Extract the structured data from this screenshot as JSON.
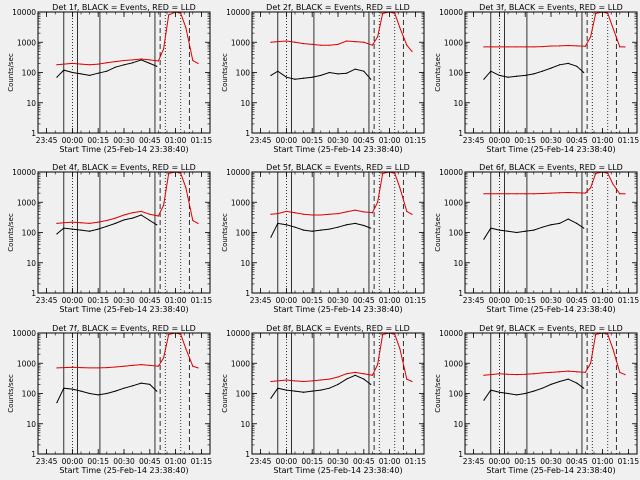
{
  "colors": {
    "background": "#f0f0f0",
    "axes": "#000000",
    "events_series": "#000000",
    "lld_series": "#dd0000"
  },
  "chart_data": [
    {
      "type": "line",
      "title": "Det 1f, BLACK = Events, RED = LLD",
      "xlabel": "Start Time (25-Feb-14 23:38:40)",
      "ylabel": "Counts/sec",
      "y_scale": "log",
      "ylim": [
        1,
        10000
      ],
      "x_ticks": [
        "23:45",
        "00:00",
        "00:15",
        "00:30",
        "00:45",
        "01:00",
        "01:15"
      ],
      "y_ticks": [
        "1",
        "10",
        "100",
        "1000",
        "10000"
      ],
      "grid": false,
      "series": [
        {
          "name": "Events",
          "color": "#000000",
          "x": [
            "23:51",
            "23:55",
            "00:00",
            "00:05",
            "00:10",
            "00:15",
            "00:20",
            "00:25",
            "00:30",
            "00:35",
            "00:40",
            "00:45",
            "00:49"
          ],
          "values": [
            70,
            120,
            100,
            90,
            80,
            95,
            110,
            150,
            180,
            210,
            260,
            200,
            160
          ]
        },
        {
          "name": "LLD",
          "color": "#dd0000",
          "x": [
            "23:51",
            "23:55",
            "00:00",
            "00:05",
            "00:10",
            "00:15",
            "00:20",
            "00:25",
            "00:30",
            "00:35",
            "00:40",
            "00:45",
            "00:50",
            "00:53",
            "00:56",
            "01:00",
            "01:03",
            "01:06",
            "01:10",
            "01:13"
          ],
          "values": [
            180,
            190,
            200,
            190,
            180,
            190,
            210,
            230,
            250,
            260,
            280,
            260,
            240,
            600,
            8000,
            10000,
            9000,
            3000,
            250,
            200
          ]
        }
      ]
    },
    {
      "type": "line",
      "title": "Det 2f, BLACK = Events, RED = LLD",
      "xlabel": "Start Time (25-Feb-14 23:38:40)",
      "ylabel": "Counts/sec",
      "y_scale": "log",
      "ylim": [
        1,
        10000
      ],
      "x_ticks": [
        "23:45",
        "00:00",
        "00:15",
        "00:30",
        "00:45",
        "01:00",
        "01:15"
      ],
      "y_ticks": [
        "1",
        "10",
        "100",
        "1000",
        "10000"
      ],
      "grid": false,
      "series": [
        {
          "name": "Events",
          "color": "#000000",
          "x": [
            "23:51",
            "23:55",
            "00:00",
            "00:05",
            "00:10",
            "00:15",
            "00:20",
            "00:25",
            "00:30",
            "00:35",
            "00:40",
            "00:45",
            "00:49"
          ],
          "values": [
            80,
            110,
            70,
            60,
            65,
            70,
            80,
            100,
            90,
            95,
            130,
            110,
            60
          ]
        },
        {
          "name": "LLD",
          "color": "#dd0000",
          "x": [
            "23:51",
            "23:55",
            "00:00",
            "00:05",
            "00:10",
            "00:15",
            "00:20",
            "00:25",
            "00:30",
            "00:35",
            "00:40",
            "00:45",
            "00:50",
            "00:53",
            "00:56",
            "01:00",
            "01:03",
            "01:06",
            "01:10",
            "01:13"
          ],
          "values": [
            1000,
            1050,
            1100,
            1000,
            900,
            850,
            800,
            800,
            850,
            1100,
            1050,
            1000,
            800,
            1500,
            9000,
            10000,
            9000,
            3000,
            800,
            500
          ]
        }
      ]
    },
    {
      "type": "line",
      "title": "Det 3f, BLACK = Events, RED = LLD",
      "xlabel": "Start Time (25-Feb-14 23:38:40)",
      "ylabel": "Counts/sec",
      "y_scale": "log",
      "ylim": [
        1,
        10000
      ],
      "x_ticks": [
        "23:45",
        "00:00",
        "00:15",
        "00:30",
        "00:45",
        "01:00",
        "01:15"
      ],
      "y_ticks": [
        "1",
        "10",
        "100",
        "1000",
        "10000"
      ],
      "grid": false,
      "series": [
        {
          "name": "Events",
          "color": "#000000",
          "x": [
            "23:51",
            "23:55",
            "00:00",
            "00:05",
            "00:10",
            "00:15",
            "00:20",
            "00:25",
            "00:30",
            "00:35",
            "00:40",
            "00:45",
            "00:49"
          ],
          "values": [
            60,
            110,
            80,
            70,
            75,
            80,
            90,
            110,
            140,
            180,
            200,
            160,
            100
          ]
        },
        {
          "name": "LLD",
          "color": "#dd0000",
          "x": [
            "23:51",
            "23:55",
            "00:00",
            "00:05",
            "00:10",
            "00:15",
            "00:20",
            "00:25",
            "00:30",
            "00:35",
            "00:40",
            "00:45",
            "00:50",
            "00:53",
            "00:56",
            "01:00",
            "01:03",
            "01:06",
            "01:10",
            "01:13"
          ],
          "values": [
            700,
            700,
            700,
            700,
            700,
            700,
            700,
            720,
            750,
            760,
            780,
            760,
            740,
            1500,
            9000,
            10000,
            9000,
            3000,
            700,
            700
          ]
        }
      ]
    },
    {
      "type": "line",
      "title": "Det 4f, BLACK = Events, RED = LLD",
      "xlabel": "Start Time (25-Feb-14 23:38:40)",
      "ylabel": "Counts/sec",
      "y_scale": "log",
      "ylim": [
        1,
        10000
      ],
      "x_ticks": [
        "23:45",
        "00:00",
        "00:15",
        "00:30",
        "00:45",
        "01:00",
        "01:15"
      ],
      "y_ticks": [
        "1",
        "10",
        "100",
        "1000",
        "10000"
      ],
      "grid": false,
      "series": [
        {
          "name": "Events",
          "color": "#000000",
          "x": [
            "23:51",
            "23:55",
            "00:00",
            "00:05",
            "00:10",
            "00:15",
            "00:20",
            "00:25",
            "00:30",
            "00:35",
            "00:40",
            "00:45",
            "00:49"
          ],
          "values": [
            90,
            140,
            130,
            120,
            110,
            130,
            160,
            200,
            260,
            300,
            380,
            250,
            180
          ]
        },
        {
          "name": "LLD",
          "color": "#dd0000",
          "x": [
            "23:51",
            "23:55",
            "00:00",
            "00:05",
            "00:10",
            "00:15",
            "00:20",
            "00:25",
            "00:30",
            "00:35",
            "00:40",
            "00:45",
            "00:50",
            "00:53",
            "00:56",
            "01:00",
            "01:03",
            "01:06",
            "01:10",
            "01:13"
          ],
          "values": [
            200,
            210,
            220,
            210,
            200,
            220,
            250,
            300,
            380,
            450,
            500,
            400,
            350,
            800,
            9000,
            10000,
            9000,
            3000,
            250,
            200
          ]
        }
      ]
    },
    {
      "type": "line",
      "title": "Det 5f, BLACK = Events, RED = LLD",
      "xlabel": "Start Time (25-Feb-14 23:38:40)",
      "ylabel": "Counts/sec",
      "y_scale": "log",
      "ylim": [
        1,
        10000
      ],
      "x_ticks": [
        "23:45",
        "00:00",
        "00:15",
        "00:30",
        "00:45",
        "01:00",
        "01:15"
      ],
      "y_ticks": [
        "1",
        "10",
        "100",
        "1000",
        "10000"
      ],
      "grid": false,
      "series": [
        {
          "name": "Events",
          "color": "#000000",
          "x": [
            "23:51",
            "23:55",
            "00:00",
            "00:05",
            "00:10",
            "00:15",
            "00:20",
            "00:25",
            "00:30",
            "00:35",
            "00:40",
            "00:45",
            "00:49"
          ],
          "values": [
            70,
            200,
            180,
            150,
            120,
            110,
            120,
            130,
            150,
            180,
            200,
            170,
            140
          ]
        },
        {
          "name": "LLD",
          "color": "#dd0000",
          "x": [
            "23:51",
            "23:55",
            "00:00",
            "00:05",
            "00:10",
            "00:15",
            "00:20",
            "00:25",
            "00:30",
            "00:35",
            "00:40",
            "00:45",
            "00:50",
            "00:53",
            "00:56",
            "01:00",
            "01:03",
            "01:06",
            "01:10",
            "01:13"
          ],
          "values": [
            400,
            420,
            500,
            450,
            400,
            380,
            380,
            400,
            420,
            480,
            550,
            480,
            450,
            1000,
            9000,
            10000,
            9000,
            3000,
            500,
            400
          ]
        }
      ]
    },
    {
      "type": "line",
      "title": "Det 6f, BLACK = Events, RED = LLD",
      "xlabel": "Start Time (25-Feb-14 23:38:40)",
      "ylabel": "Counts/sec",
      "y_scale": "log",
      "ylim": [
        1,
        10000
      ],
      "x_ticks": [
        "23:45",
        "00:00",
        "00:15",
        "00:30",
        "00:45",
        "01:00",
        "01:15"
      ],
      "y_ticks": [
        "1",
        "10",
        "100",
        "1000",
        "10000"
      ],
      "grid": false,
      "series": [
        {
          "name": "Events",
          "color": "#000000",
          "x": [
            "23:51",
            "23:55",
            "00:00",
            "00:05",
            "00:10",
            "00:15",
            "00:20",
            "00:25",
            "00:30",
            "00:35",
            "00:40",
            "00:45",
            "00:49"
          ],
          "values": [
            60,
            140,
            120,
            110,
            100,
            110,
            120,
            150,
            180,
            200,
            280,
            200,
            140
          ]
        },
        {
          "name": "LLD",
          "color": "#dd0000",
          "x": [
            "23:51",
            "23:55",
            "00:00",
            "00:05",
            "00:10",
            "00:15",
            "00:20",
            "00:25",
            "00:30",
            "00:35",
            "00:40",
            "00:45",
            "00:50",
            "00:53",
            "00:56",
            "01:00",
            "01:03",
            "01:06",
            "01:10",
            "01:13"
          ],
          "values": [
            1900,
            1900,
            1900,
            1900,
            1900,
            1900,
            1900,
            1950,
            2000,
            2050,
            2100,
            2050,
            2000,
            3000,
            9000,
            10000,
            9000,
            4000,
            1900,
            1900
          ]
        }
      ]
    },
    {
      "type": "line",
      "title": "Det 7f, BLACK = Events, RED = LLD",
      "xlabel": "Start Time (25-Feb-14 23:38:40)",
      "ylabel": "Counts/sec",
      "y_scale": "log",
      "ylim": [
        1,
        10000
      ],
      "x_ticks": [
        "23:45",
        "00:00",
        "00:15",
        "00:30",
        "00:45",
        "01:00",
        "01:15"
      ],
      "y_ticks": [
        "1",
        "10",
        "100",
        "1000",
        "10000"
      ],
      "grid": false,
      "series": [
        {
          "name": "Events",
          "color": "#000000",
          "x": [
            "23:51",
            "23:55",
            "00:00",
            "00:05",
            "00:10",
            "00:15",
            "00:20",
            "00:25",
            "00:30",
            "00:35",
            "00:40",
            "00:45",
            "00:49"
          ],
          "values": [
            50,
            150,
            140,
            120,
            100,
            90,
            100,
            120,
            150,
            180,
            220,
            200,
            120
          ]
        },
        {
          "name": "LLD",
          "color": "#dd0000",
          "x": [
            "23:51",
            "23:55",
            "00:00",
            "00:05",
            "00:10",
            "00:15",
            "00:20",
            "00:25",
            "00:30",
            "00:35",
            "00:40",
            "00:45",
            "00:50",
            "00:53",
            "00:56",
            "01:00",
            "01:03",
            "01:06",
            "01:10",
            "01:13"
          ],
          "values": [
            700,
            720,
            740,
            720,
            700,
            700,
            720,
            750,
            800,
            850,
            900,
            850,
            800,
            1500,
            9000,
            10000,
            9000,
            3000,
            800,
            700
          ]
        }
      ]
    },
    {
      "type": "line",
      "title": "Det 8f, BLACK = Events, RED = LLD",
      "xlabel": "Start Time (25-Feb-14 23:38:40)",
      "ylabel": "Counts/sec",
      "y_scale": "log",
      "ylim": [
        1,
        10000
      ],
      "x_ticks": [
        "23:45",
        "00:00",
        "00:15",
        "00:30",
        "00:45",
        "01:00",
        "01:15"
      ],
      "y_ticks": [
        "1",
        "10",
        "100",
        "1000",
        "10000"
      ],
      "grid": false,
      "series": [
        {
          "name": "Events",
          "color": "#000000",
          "x": [
            "23:51",
            "23:55",
            "00:00",
            "00:05",
            "00:10",
            "00:15",
            "00:20",
            "00:25",
            "00:30",
            "00:35",
            "00:40",
            "00:45",
            "00:49"
          ],
          "values": [
            70,
            150,
            130,
            120,
            110,
            120,
            130,
            150,
            200,
            300,
            400,
            300,
            200
          ]
        },
        {
          "name": "LLD",
          "color": "#dd0000",
          "x": [
            "23:51",
            "23:55",
            "00:00",
            "00:05",
            "00:10",
            "00:15",
            "00:20",
            "00:25",
            "00:30",
            "00:35",
            "00:40",
            "00:45",
            "00:50",
            "00:53",
            "00:56",
            "01:00",
            "01:03",
            "01:06",
            "01:10",
            "01:13"
          ],
          "values": [
            250,
            260,
            280,
            260,
            250,
            260,
            280,
            300,
            350,
            450,
            500,
            450,
            400,
            900,
            9000,
            10000,
            9000,
            3000,
            300,
            250
          ]
        }
      ]
    },
    {
      "type": "line",
      "title": "Det 9f, BLACK = Events, RED = LLD",
      "xlabel": "Start Time (25-Feb-14 23:38:40)",
      "ylabel": "Counts/sec",
      "y_scale": "log",
      "ylim": [
        1,
        10000
      ],
      "x_ticks": [
        "23:45",
        "00:00",
        "00:15",
        "00:30",
        "00:45",
        "01:00",
        "01:15"
      ],
      "y_ticks": [
        "1",
        "10",
        "100",
        "1000",
        "10000"
      ],
      "grid": false,
      "series": [
        {
          "name": "Events",
          "color": "#000000",
          "x": [
            "23:51",
            "23:55",
            "00:00",
            "00:05",
            "00:10",
            "00:15",
            "00:20",
            "00:25",
            "00:30",
            "00:35",
            "00:40",
            "00:45",
            "00:49"
          ],
          "values": [
            60,
            130,
            110,
            100,
            90,
            100,
            120,
            150,
            200,
            250,
            300,
            220,
            150
          ]
        },
        {
          "name": "LLD",
          "color": "#dd0000",
          "x": [
            "23:51",
            "23:55",
            "00:00",
            "00:05",
            "00:10",
            "00:15",
            "00:20",
            "00:25",
            "00:30",
            "00:35",
            "00:40",
            "00:45",
            "00:50",
            "00:53",
            "00:56",
            "01:00",
            "01:03",
            "01:06",
            "01:10",
            "01:13"
          ],
          "values": [
            400,
            420,
            450,
            430,
            420,
            430,
            450,
            480,
            500,
            520,
            550,
            520,
            500,
            1000,
            9000,
            10000,
            9000,
            3000,
            500,
            420
          ]
        }
      ]
    }
  ]
}
